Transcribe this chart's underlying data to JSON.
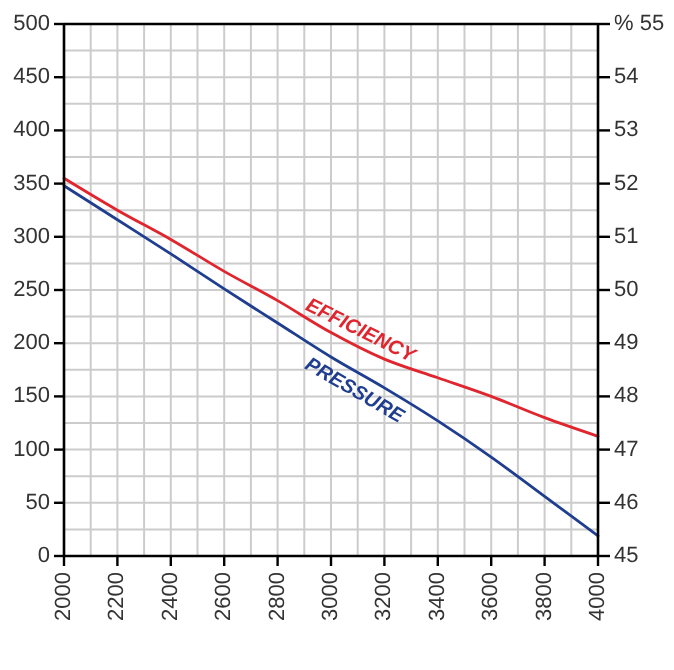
{
  "chart_data": {
    "type": "line",
    "x": [
      2000,
      2200,
      2400,
      2600,
      2800,
      3000,
      3200,
      3400,
      3600,
      3800,
      4000
    ],
    "xlim": [
      2000,
      4000
    ],
    "xticks": [
      2000,
      {
        "value": 2100,
        "label": null
      },
      2200,
      {
        "value": 2300,
        "label": null
      },
      2400,
      {
        "value": 2500,
        "label": null
      },
      2600,
      {
        "value": 2700,
        "label": null
      },
      2800,
      {
        "value": 2900,
        "label": null
      },
      3000,
      {
        "value": 3100,
        "label": null
      },
      3200,
      {
        "value": 3300,
        "label": null
      },
      3400,
      {
        "value": 3500,
        "label": null
      },
      3600,
      {
        "value": 3700,
        "label": null
      },
      3800,
      {
        "value": 3900,
        "label": null
      },
      4000
    ],
    "ylim": [
      0,
      500
    ],
    "yticks": [
      0,
      {
        "value": 25,
        "label": null
      },
      50,
      {
        "value": 75,
        "label": null
      },
      100,
      {
        "value": 125,
        "label": null
      },
      150,
      {
        "value": 175,
        "label": null
      },
      200,
      {
        "value": 225,
        "label": null
      },
      250,
      {
        "value": 275,
        "label": null
      },
      300,
      {
        "value": 325,
        "label": null
      },
      350,
      {
        "value": 375,
        "label": null
      },
      400,
      {
        "value": 425,
        "label": null
      },
      450,
      {
        "value": 475,
        "label": null
      },
      500
    ],
    "y2lim": [
      45,
      55
    ],
    "y2ticks": [
      45,
      46,
      47,
      48,
      49,
      50,
      51,
      52,
      53,
      54,
      {
        "value": 55,
        "label": "% 55"
      }
    ],
    "grid": true,
    "marker": "none",
    "line_style": "solid",
    "series": [
      {
        "name": "EFFICIENCY",
        "color": "#e0252e",
        "axis": "y2",
        "values": [
          52.1,
          51.5,
          50.95,
          50.35,
          49.8,
          49.2,
          48.7,
          48.35,
          48.0,
          47.6,
          47.25
        ]
      },
      {
        "name": "PRESSURE",
        "color": "#1f3e8f",
        "values": [
          348,
          316,
          284,
          251,
          219,
          187,
          158,
          127,
          93,
          56,
          19
        ]
      }
    ]
  }
}
